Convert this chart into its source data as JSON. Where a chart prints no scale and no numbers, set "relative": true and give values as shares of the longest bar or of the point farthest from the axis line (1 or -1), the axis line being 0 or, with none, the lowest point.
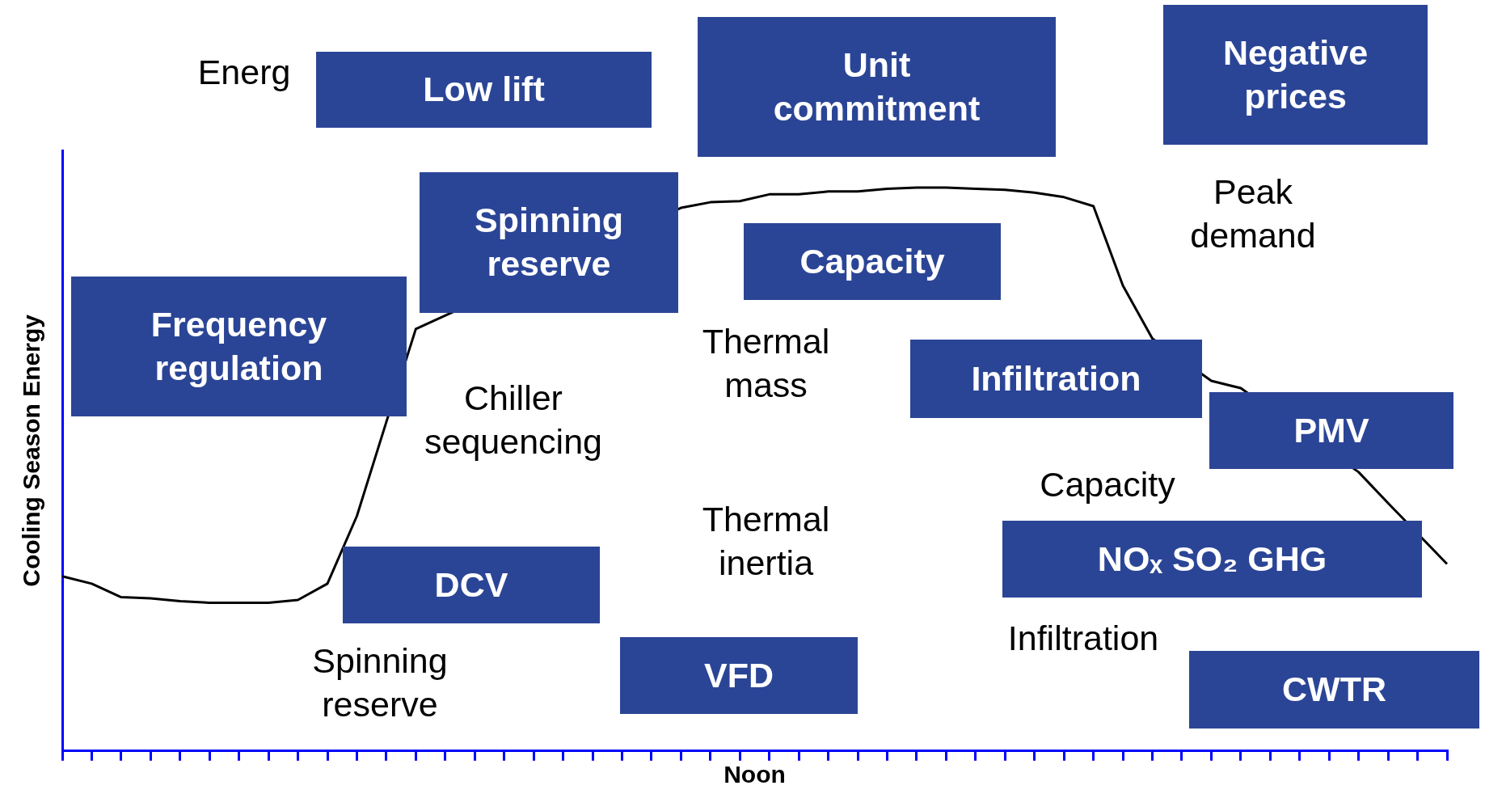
{
  "chart_data": {
    "type": "line",
    "relative": true,
    "xlabel": "Noon",
    "ylabel": "Cooling Season Energy",
    "categories": [
      null,
      null,
      null,
      null,
      null,
      null,
      null,
      null,
      null,
      null,
      null,
      null,
      null,
      null,
      null,
      null,
      null,
      null,
      null,
      null,
      null,
      null,
      null,
      null,
      null,
      null,
      null,
      null,
      null,
      null,
      null,
      null,
      null,
      null,
      null,
      null,
      null,
      null,
      null,
      null,
      null,
      null,
      null,
      null,
      null,
      null,
      null,
      null
    ],
    "series": [
      {
        "color": "#000000",
        "values": [
          0.31,
          0.297,
          0.273,
          0.271,
          0.266,
          0.263,
          0.263,
          0.263,
          0.268,
          0.297,
          0.417,
          0.584,
          0.749,
          null,
          null,
          null,
          null,
          null,
          null,
          null,
          null,
          0.964,
          0.974,
          0.976,
          0.988,
          0.988,
          0.993,
          0.993,
          0.998,
          1,
          1,
          0.998,
          0.996,
          0.991,
          0.983,
          0.967,
          0.826,
          0.732,
          null,
          0.657,
          0.644,
          null,
          null,
          null,
          0.495,
          0.44,
          null,
          0.332
        ]
      }
    ],
    "marker": "none",
    "line_style": "solid",
    "annotations": [
      "Energ",
      "Low lift",
      "Unit commitment",
      "Negative prices",
      "Peak demand",
      "Spinning reserve",
      "Capacity",
      "Frequency regulation",
      "Thermal mass",
      "Infiltration",
      "Chiller sequencing",
      "PMV",
      "Capacity",
      "Thermal inertia",
      "DCV",
      "NOₓ SO₂ GHG",
      "Spinning reserve",
      "Infiltration",
      "VFD",
      "CWTR"
    ]
  }
}
